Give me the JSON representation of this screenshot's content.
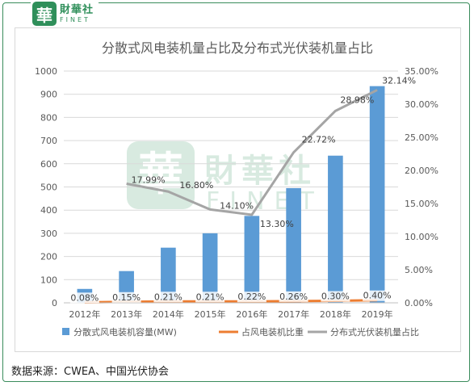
{
  "logo": {
    "mark": "華",
    "cn": "財華社",
    "en": "FINET"
  },
  "watermark": {
    "mark": "華",
    "cn": "財華社",
    "en": "FINET"
  },
  "source_note": "数据来源：CWEA、中国光伏协会",
  "colors": {
    "bar": "#5b9bd5",
    "orange_line": "#ed7d31",
    "gray_line": "#a5a5a5",
    "frame": "#3a8c5c",
    "grid": "#d9d9d9",
    "text": "#595959"
  },
  "chart_data": {
    "type": "bar",
    "title": "分散式风电装机量占比及分布式光伏装机量占比",
    "categories": [
      "2012年",
      "2013年",
      "2014年",
      "2015年",
      "2016年",
      "2017年",
      "2018年",
      "2019年"
    ],
    "ylim": [
      0,
      1000
    ],
    "y_ticks": [
      "0",
      "100",
      "200",
      "300",
      "400",
      "500",
      "600",
      "700",
      "800",
      "900",
      "1000"
    ],
    "y2lim": [
      0,
      35
    ],
    "y2_ticks": [
      "0.00%",
      "5.00%",
      "10.00%",
      "15.00%",
      "20.00%",
      "25.00%",
      "30.00%",
      "35.00%"
    ],
    "grid": true,
    "legend_position": "bottom",
    "series": [
      {
        "name": "分散式风电装机容量(MW)",
        "type": "bar",
        "axis": "left",
        "values": [
          60,
          137,
          238,
          300,
          375,
          495,
          635,
          935
        ]
      },
      {
        "name": "占风电装机比重",
        "type": "line",
        "axis": "right",
        "values": [
          0.08,
          0.15,
          0.21,
          0.21,
          0.22,
          0.26,
          0.3,
          0.4
        ],
        "labels": [
          "0.08%",
          "0.15%",
          "0.21%",
          "0.21%",
          "0.22%",
          "0.26%",
          "0.30%",
          "0.40%"
        ]
      },
      {
        "name": "分布式光伏装机量占比",
        "type": "line",
        "axis": "right",
        "values": [
          null,
          17.99,
          16.8,
          14.1,
          13.3,
          22.72,
          28.98,
          32.14
        ],
        "labels": [
          "",
          "17.99%",
          "16.80%",
          "14.10%",
          "13.30%",
          "22.72%",
          "28.98%",
          "32.14%"
        ]
      }
    ]
  }
}
